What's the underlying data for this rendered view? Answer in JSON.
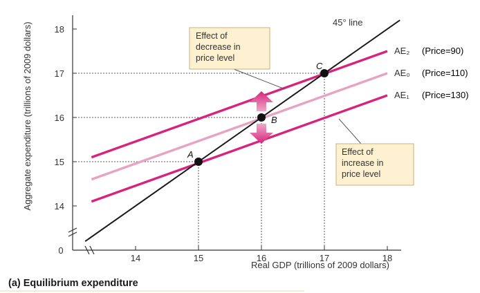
{
  "chart_data": {
    "type": "line",
    "caption": "(a) Equilibrium expenditure",
    "xlabel": "Real GDP (trillions of 2009 dollars)",
    "ylabel": "Aggregate expenditure (trillions of 2009 dollars)",
    "origin_label": "0",
    "x_ticks": [
      "14",
      "15",
      "16",
      "17",
      "18"
    ],
    "y_ticks": [
      "14",
      "15",
      "16",
      "17",
      "18"
    ],
    "xlim": [
      13.2,
      18.3
    ],
    "ylim": [
      13.2,
      18.3
    ],
    "series": [
      {
        "name": "45° line",
        "x": [
          13.2,
          18.2
        ],
        "y": [
          13.2,
          18.2
        ],
        "color": "#1a1a1a"
      },
      {
        "name": "AE₂",
        "price_label": "(Price=90)",
        "x": [
          13.3,
          18.0
        ],
        "y": [
          15.1,
          17.5
        ],
        "color": "#d6247e"
      },
      {
        "name": "AE₀",
        "price_label": "(Price=110)",
        "x": [
          13.3,
          18.0
        ],
        "y": [
          14.6,
          17.0
        ],
        "color": "#e8a2c2"
      },
      {
        "name": "AE₁",
        "price_label": "(Price=130)",
        "x": [
          13.3,
          18.0
        ],
        "y": [
          14.1,
          16.5
        ],
        "color": "#d6247e"
      }
    ],
    "points": [
      {
        "label": "A",
        "x": 15,
        "y": 15
      },
      {
        "label": "B",
        "x": 16,
        "y": 16
      },
      {
        "label": "C",
        "x": 17,
        "y": 17
      }
    ],
    "annotations": [
      {
        "lines": [
          "Effect of",
          "decrease in",
          "price level"
        ]
      },
      {
        "lines": [
          "Effect of",
          "increase in",
          "price level"
        ]
      }
    ],
    "grid": false
  }
}
